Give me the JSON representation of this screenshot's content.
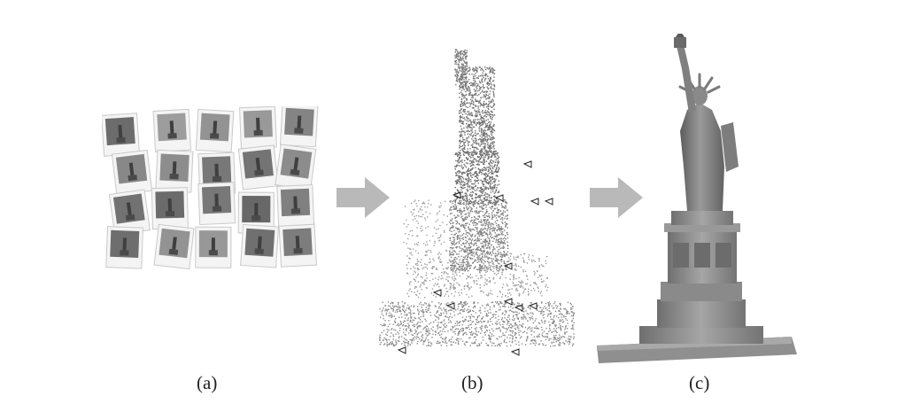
{
  "panels": [
    {
      "label": "(a)"
    },
    {
      "label": "(b)"
    },
    {
      "label": "(c)"
    }
  ],
  "colors": {
    "arrow": "#b7b7b7",
    "photo_frame": "#f2f2f2",
    "photo_dark": "#5e5e5e",
    "points": "#7a7a7a",
    "statue": "#8c8c8c",
    "caption": "#222222"
  }
}
